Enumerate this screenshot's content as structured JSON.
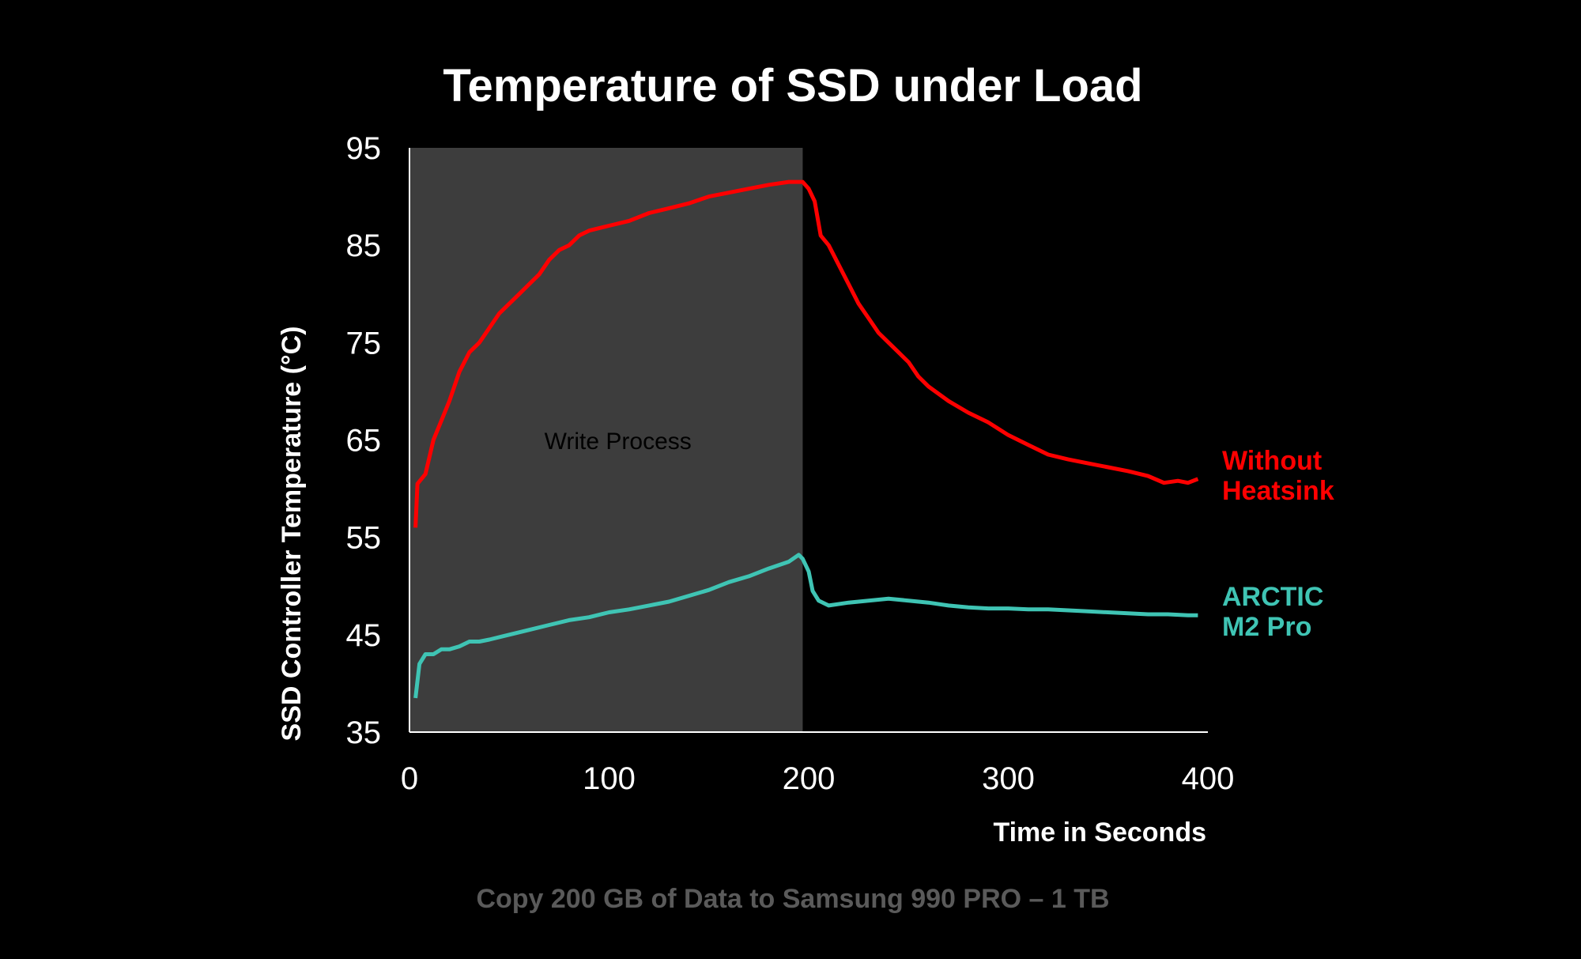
{
  "chart_data": {
    "type": "line",
    "title": "Temperature of SSD under Load",
    "xlabel": "Time in Seconds",
    "ylabel": "SSD Controller Temperature (°C)",
    "caption": "Copy 200 GB of Data to Samsung 990 PRO  – 1 TB",
    "xlim": [
      0,
      400
    ],
    "ylim": [
      35,
      95
    ],
    "xticks": [
      0,
      100,
      200,
      300,
      400
    ],
    "yticks": [
      35,
      45,
      55,
      65,
      75,
      85,
      95
    ],
    "grid": false,
    "shaded_region": {
      "label": "Write Process",
      "x_start": 0,
      "x_end": 197,
      "color": "#3d3d3d"
    },
    "series": [
      {
        "name_lines": [
          "Without",
          "Heatsink"
        ],
        "color": "#ff0000",
        "points": [
          [
            3,
            56
          ],
          [
            4,
            60.5
          ],
          [
            8,
            61.5
          ],
          [
            12,
            65
          ],
          [
            16,
            67
          ],
          [
            20,
            69
          ],
          [
            25,
            72
          ],
          [
            30,
            74
          ],
          [
            35,
            75
          ],
          [
            40,
            76.5
          ],
          [
            45,
            78
          ],
          [
            50,
            79
          ],
          [
            55,
            80
          ],
          [
            60,
            81
          ],
          [
            65,
            82
          ],
          [
            70,
            83.5
          ],
          [
            75,
            84.5
          ],
          [
            80,
            85
          ],
          [
            85,
            86
          ],
          [
            90,
            86.5
          ],
          [
            100,
            87
          ],
          [
            110,
            87.5
          ],
          [
            120,
            88.3
          ],
          [
            130,
            88.8
          ],
          [
            140,
            89.3
          ],
          [
            150,
            90
          ],
          [
            160,
            90.4
          ],
          [
            170,
            90.8
          ],
          [
            180,
            91.2
          ],
          [
            190,
            91.5
          ],
          [
            197,
            91.5
          ],
          [
            200,
            90.8
          ],
          [
            203,
            89.5
          ],
          [
            206,
            86
          ],
          [
            210,
            85
          ],
          [
            215,
            83
          ],
          [
            220,
            81
          ],
          [
            225,
            79
          ],
          [
            230,
            77.5
          ],
          [
            235,
            76
          ],
          [
            240,
            75
          ],
          [
            245,
            74
          ],
          [
            250,
            73
          ],
          [
            255,
            71.5
          ],
          [
            260,
            70.5
          ],
          [
            270,
            69
          ],
          [
            280,
            67.8
          ],
          [
            290,
            66.8
          ],
          [
            300,
            65.5
          ],
          [
            310,
            64.5
          ],
          [
            320,
            63.5
          ],
          [
            330,
            63
          ],
          [
            340,
            62.6
          ],
          [
            350,
            62.2
          ],
          [
            360,
            61.8
          ],
          [
            370,
            61.3
          ],
          [
            378,
            60.6
          ],
          [
            385,
            60.8
          ],
          [
            390,
            60.6
          ],
          [
            395,
            61
          ]
        ]
      },
      {
        "name_lines": [
          "ARCTIC",
          "M2 Pro"
        ],
        "color": "#3fc4b4",
        "points": [
          [
            3,
            38.5
          ],
          [
            5,
            42
          ],
          [
            8,
            43
          ],
          [
            12,
            43
          ],
          [
            16,
            43.5
          ],
          [
            20,
            43.5
          ],
          [
            25,
            43.8
          ],
          [
            30,
            44.3
          ],
          [
            35,
            44.3
          ],
          [
            40,
            44.5
          ],
          [
            50,
            45
          ],
          [
            60,
            45.5
          ],
          [
            70,
            46
          ],
          [
            80,
            46.5
          ],
          [
            90,
            46.8
          ],
          [
            100,
            47.3
          ],
          [
            110,
            47.6
          ],
          [
            120,
            48
          ],
          [
            130,
            48.4
          ],
          [
            140,
            49
          ],
          [
            150,
            49.6
          ],
          [
            160,
            50.4
          ],
          [
            170,
            51
          ],
          [
            180,
            51.8
          ],
          [
            190,
            52.5
          ],
          [
            195,
            53.2
          ],
          [
            197,
            52.8
          ],
          [
            200,
            51.5
          ],
          [
            202,
            49.5
          ],
          [
            205,
            48.5
          ],
          [
            210,
            48
          ],
          [
            220,
            48.3
          ],
          [
            230,
            48.5
          ],
          [
            240,
            48.7
          ],
          [
            250,
            48.5
          ],
          [
            260,
            48.3
          ],
          [
            270,
            48
          ],
          [
            280,
            47.8
          ],
          [
            290,
            47.7
          ],
          [
            300,
            47.7
          ],
          [
            310,
            47.6
          ],
          [
            320,
            47.6
          ],
          [
            330,
            47.5
          ],
          [
            340,
            47.4
          ],
          [
            350,
            47.3
          ],
          [
            360,
            47.2
          ],
          [
            370,
            47.1
          ],
          [
            380,
            47.1
          ],
          [
            390,
            47
          ],
          [
            395,
            47
          ]
        ]
      }
    ]
  }
}
